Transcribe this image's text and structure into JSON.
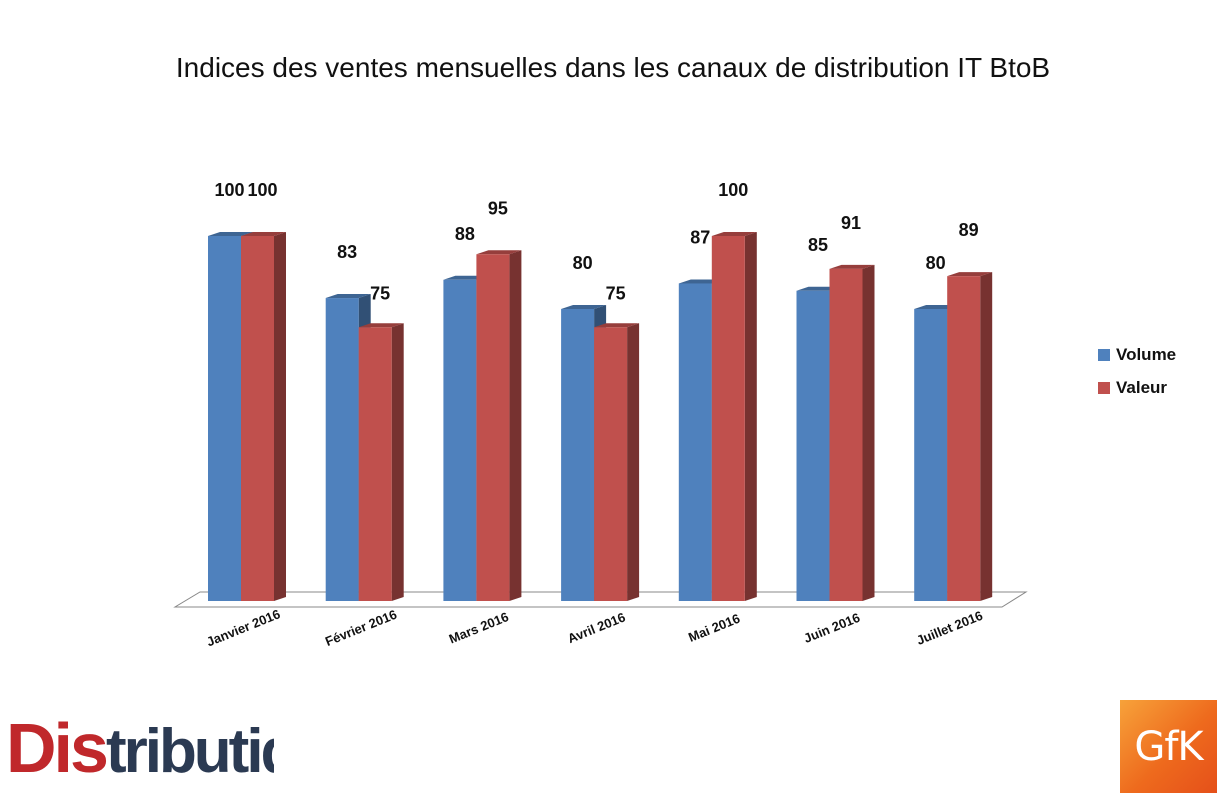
{
  "chart_data": {
    "type": "bar",
    "title": "Indices des ventes mensuelles dans les canaux de distribution IT BtoB",
    "xlabel": "",
    "ylabel": "",
    "categories": [
      "Janvier 2016",
      "Février 2016",
      "Mars 2016",
      "Avril 2016",
      "Mai 2016",
      "Juin 2016",
      "Juillet 2016"
    ],
    "series": [
      {
        "name": "Volume",
        "values": [
          100,
          83,
          88,
          80,
          87,
          85,
          80
        ],
        "color": "#4f81bd"
      },
      {
        "name": "Valeur",
        "values": [
          100,
          75,
          95,
          75,
          100,
          91,
          89
        ],
        "color": "#c0504d"
      }
    ],
    "ylim": [
      0,
      100
    ],
    "grid": false,
    "legend_position": "right",
    "style": "3d-clustered-column"
  },
  "logos": {
    "left": "Distributique",
    "right": "GfK"
  }
}
